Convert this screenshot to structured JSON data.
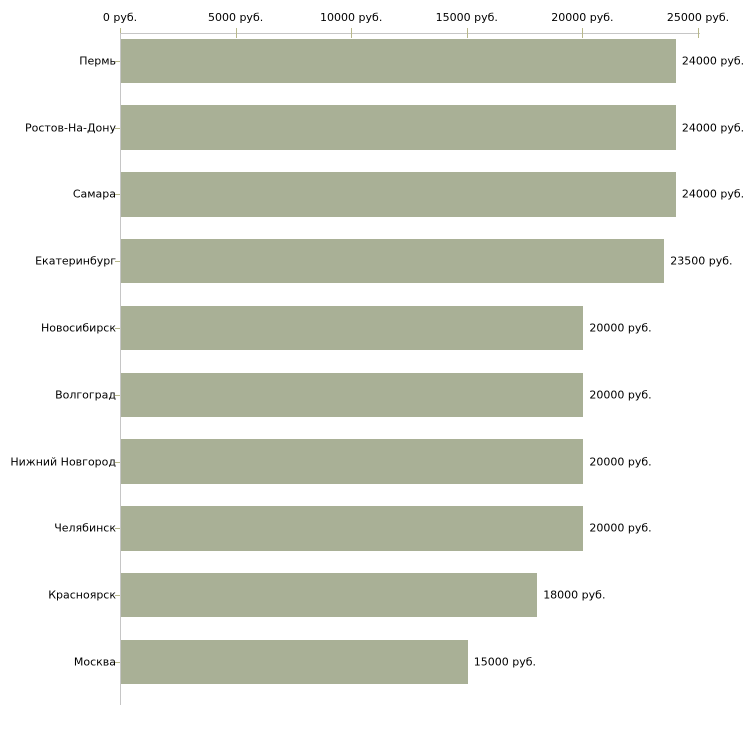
{
  "chart_data": {
    "type": "bar",
    "orientation": "horizontal",
    "title": "",
    "categories": [
      "Пермь",
      "Ростов-На-Дону",
      "Самара",
      "Екатеринбург",
      "Новосибирск",
      "Волгоград",
      "Нижний Новгород",
      "Челябинск",
      "Красноярск",
      "Москва"
    ],
    "values": [
      24000,
      24000,
      24000,
      23500,
      20000,
      20000,
      20000,
      20000,
      18000,
      15000
    ],
    "value_labels": [
      "24000 руб.",
      "24000 руб.",
      "24000 руб.",
      "23500 руб.",
      "20000 руб.",
      "20000 руб.",
      "20000 руб.",
      "20000 руб.",
      "18000 руб.",
      "15000 руб."
    ],
    "x_axis": {
      "position": "top",
      "range": [
        0,
        25000
      ],
      "ticks": [
        0,
        5000,
        10000,
        15000,
        20000,
        25000
      ],
      "tick_labels": [
        "0 руб.",
        "5000 руб.",
        "10000 руб.",
        "15000 руб.",
        "20000 руб.",
        "25000 руб."
      ]
    },
    "grid": false,
    "legend": false,
    "colors": {
      "bar": "#A9B096",
      "axis_line": "#C6C6C6",
      "tick": "#B8B88A",
      "text": "#000000",
      "background": "#FFFFFF"
    }
  }
}
